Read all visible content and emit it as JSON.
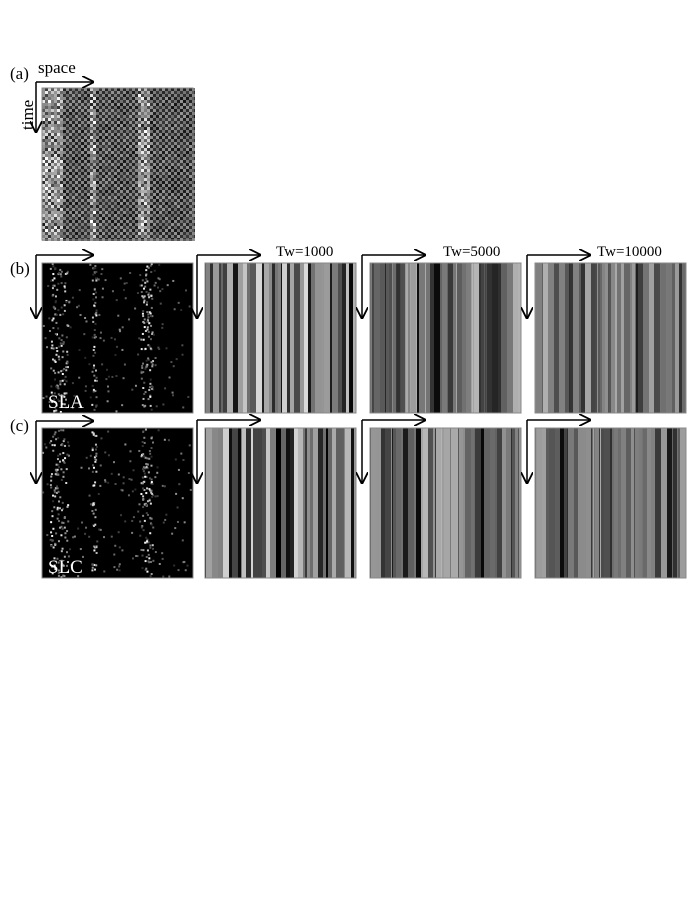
{
  "figure": {
    "row_a": {
      "label": "(a)",
      "x_axis": "space",
      "y_axis": "time"
    },
    "row_b": {
      "label": "(b)",
      "panel_label": "SLA"
    },
    "row_c": {
      "label": "(c)",
      "panel_label": "SLC"
    },
    "columns": [
      {
        "title": ""
      },
      {
        "title": "Tw=1000"
      },
      {
        "title": "Tw=5000"
      },
      {
        "title": "Tw=10000"
      }
    ]
  },
  "colors": {
    "ink": "#000000",
    "frame": "#888888"
  }
}
